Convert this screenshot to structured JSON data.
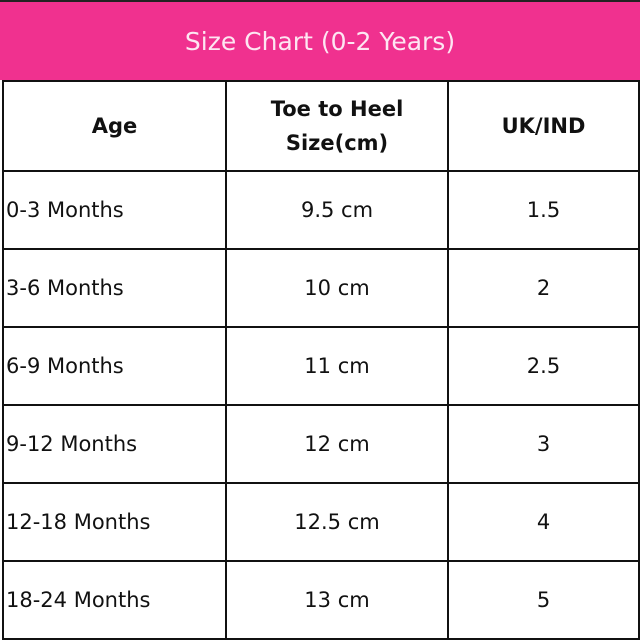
{
  "title": "Size Chart (0-2 Years)",
  "accent_color": "#f0318f",
  "headers": {
    "age": "Age",
    "size_line1": "Toe to Heel",
    "size_line2": "Size(cm)",
    "uk": "UK/IND"
  },
  "rows": [
    {
      "age": "0-3 Months",
      "size": "9.5 cm",
      "uk": "1.5"
    },
    {
      "age": "3-6 Months",
      "size": "10 cm",
      "uk": "2"
    },
    {
      "age": "6-9 Months",
      "size": "11 cm",
      "uk": "2.5"
    },
    {
      "age": "9-12 Months",
      "size": "12 cm",
      "uk": "3"
    },
    {
      "age": "12-18 Months",
      "size": "12.5 cm",
      "uk": "4"
    },
    {
      "age": "18-24 Months",
      "size": "13 cm",
      "uk": "5"
    }
  ]
}
